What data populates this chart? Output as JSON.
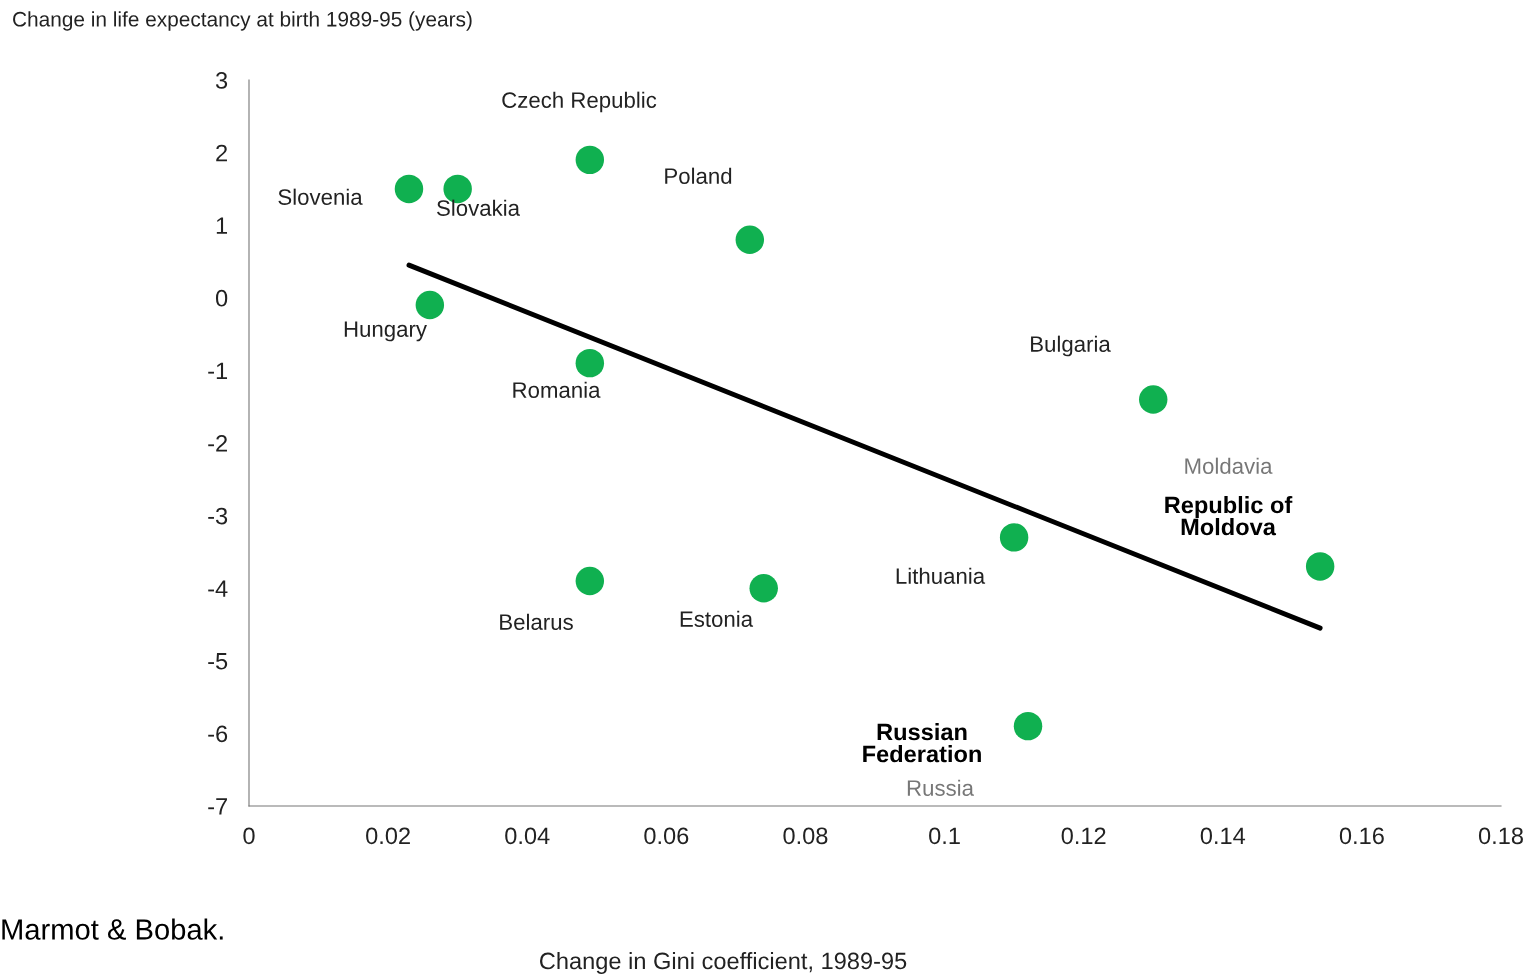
{
  "chart_data": {
    "type": "scatter",
    "ylabel": "Change in life expectancy at birth 1989-95 (years)",
    "xlabel": "Change in Gini coefficient, 1989-95",
    "x": [
      0.023,
      0.03,
      0.049,
      0.072,
      0.026,
      0.049,
      0.13,
      0.11,
      0.154,
      0.049,
      0.074,
      0.112
    ],
    "series": [
      {
        "marker": "circle",
        "color": "#10b050",
        "values": [
          1.5,
          1.5,
          1.9,
          0.8,
          -0.1,
          -0.9,
          -1.4,
          -3.3,
          -3.7,
          -3.9,
          -4.0,
          -5.9
        ]
      },
      {
        "type": "line",
        "marker": "none",
        "color": "#000000",
        "x": [
          0.023,
          0.154
        ],
        "values": [
          0.45,
          -4.55
        ]
      }
    ],
    "xlim": [
      0,
      0.18
    ],
    "xticks": [
      0,
      0.02,
      0.04,
      0.06,
      0.08,
      0.1,
      0.12,
      0.14,
      0.16,
      0.18
    ],
    "ylim": [
      -7,
      3
    ],
    "yticks": [
      -7,
      -6,
      -5,
      -4,
      -3,
      -2,
      -1,
      0,
      1,
      2,
      3
    ],
    "grid": false,
    "legend": false,
    "annotations": [
      "Slovenia",
      "Slovakia",
      "Czech Republic",
      "Poland",
      "Hungary",
      "Romania",
      "Bulgaria",
      "Lithuania",
      "Republic of\nMoldova",
      "Moldavia",
      "Belarus",
      "Estonia",
      "Russian\nFederation",
      "Russia",
      "Marmot & Bobak."
    ]
  }
}
